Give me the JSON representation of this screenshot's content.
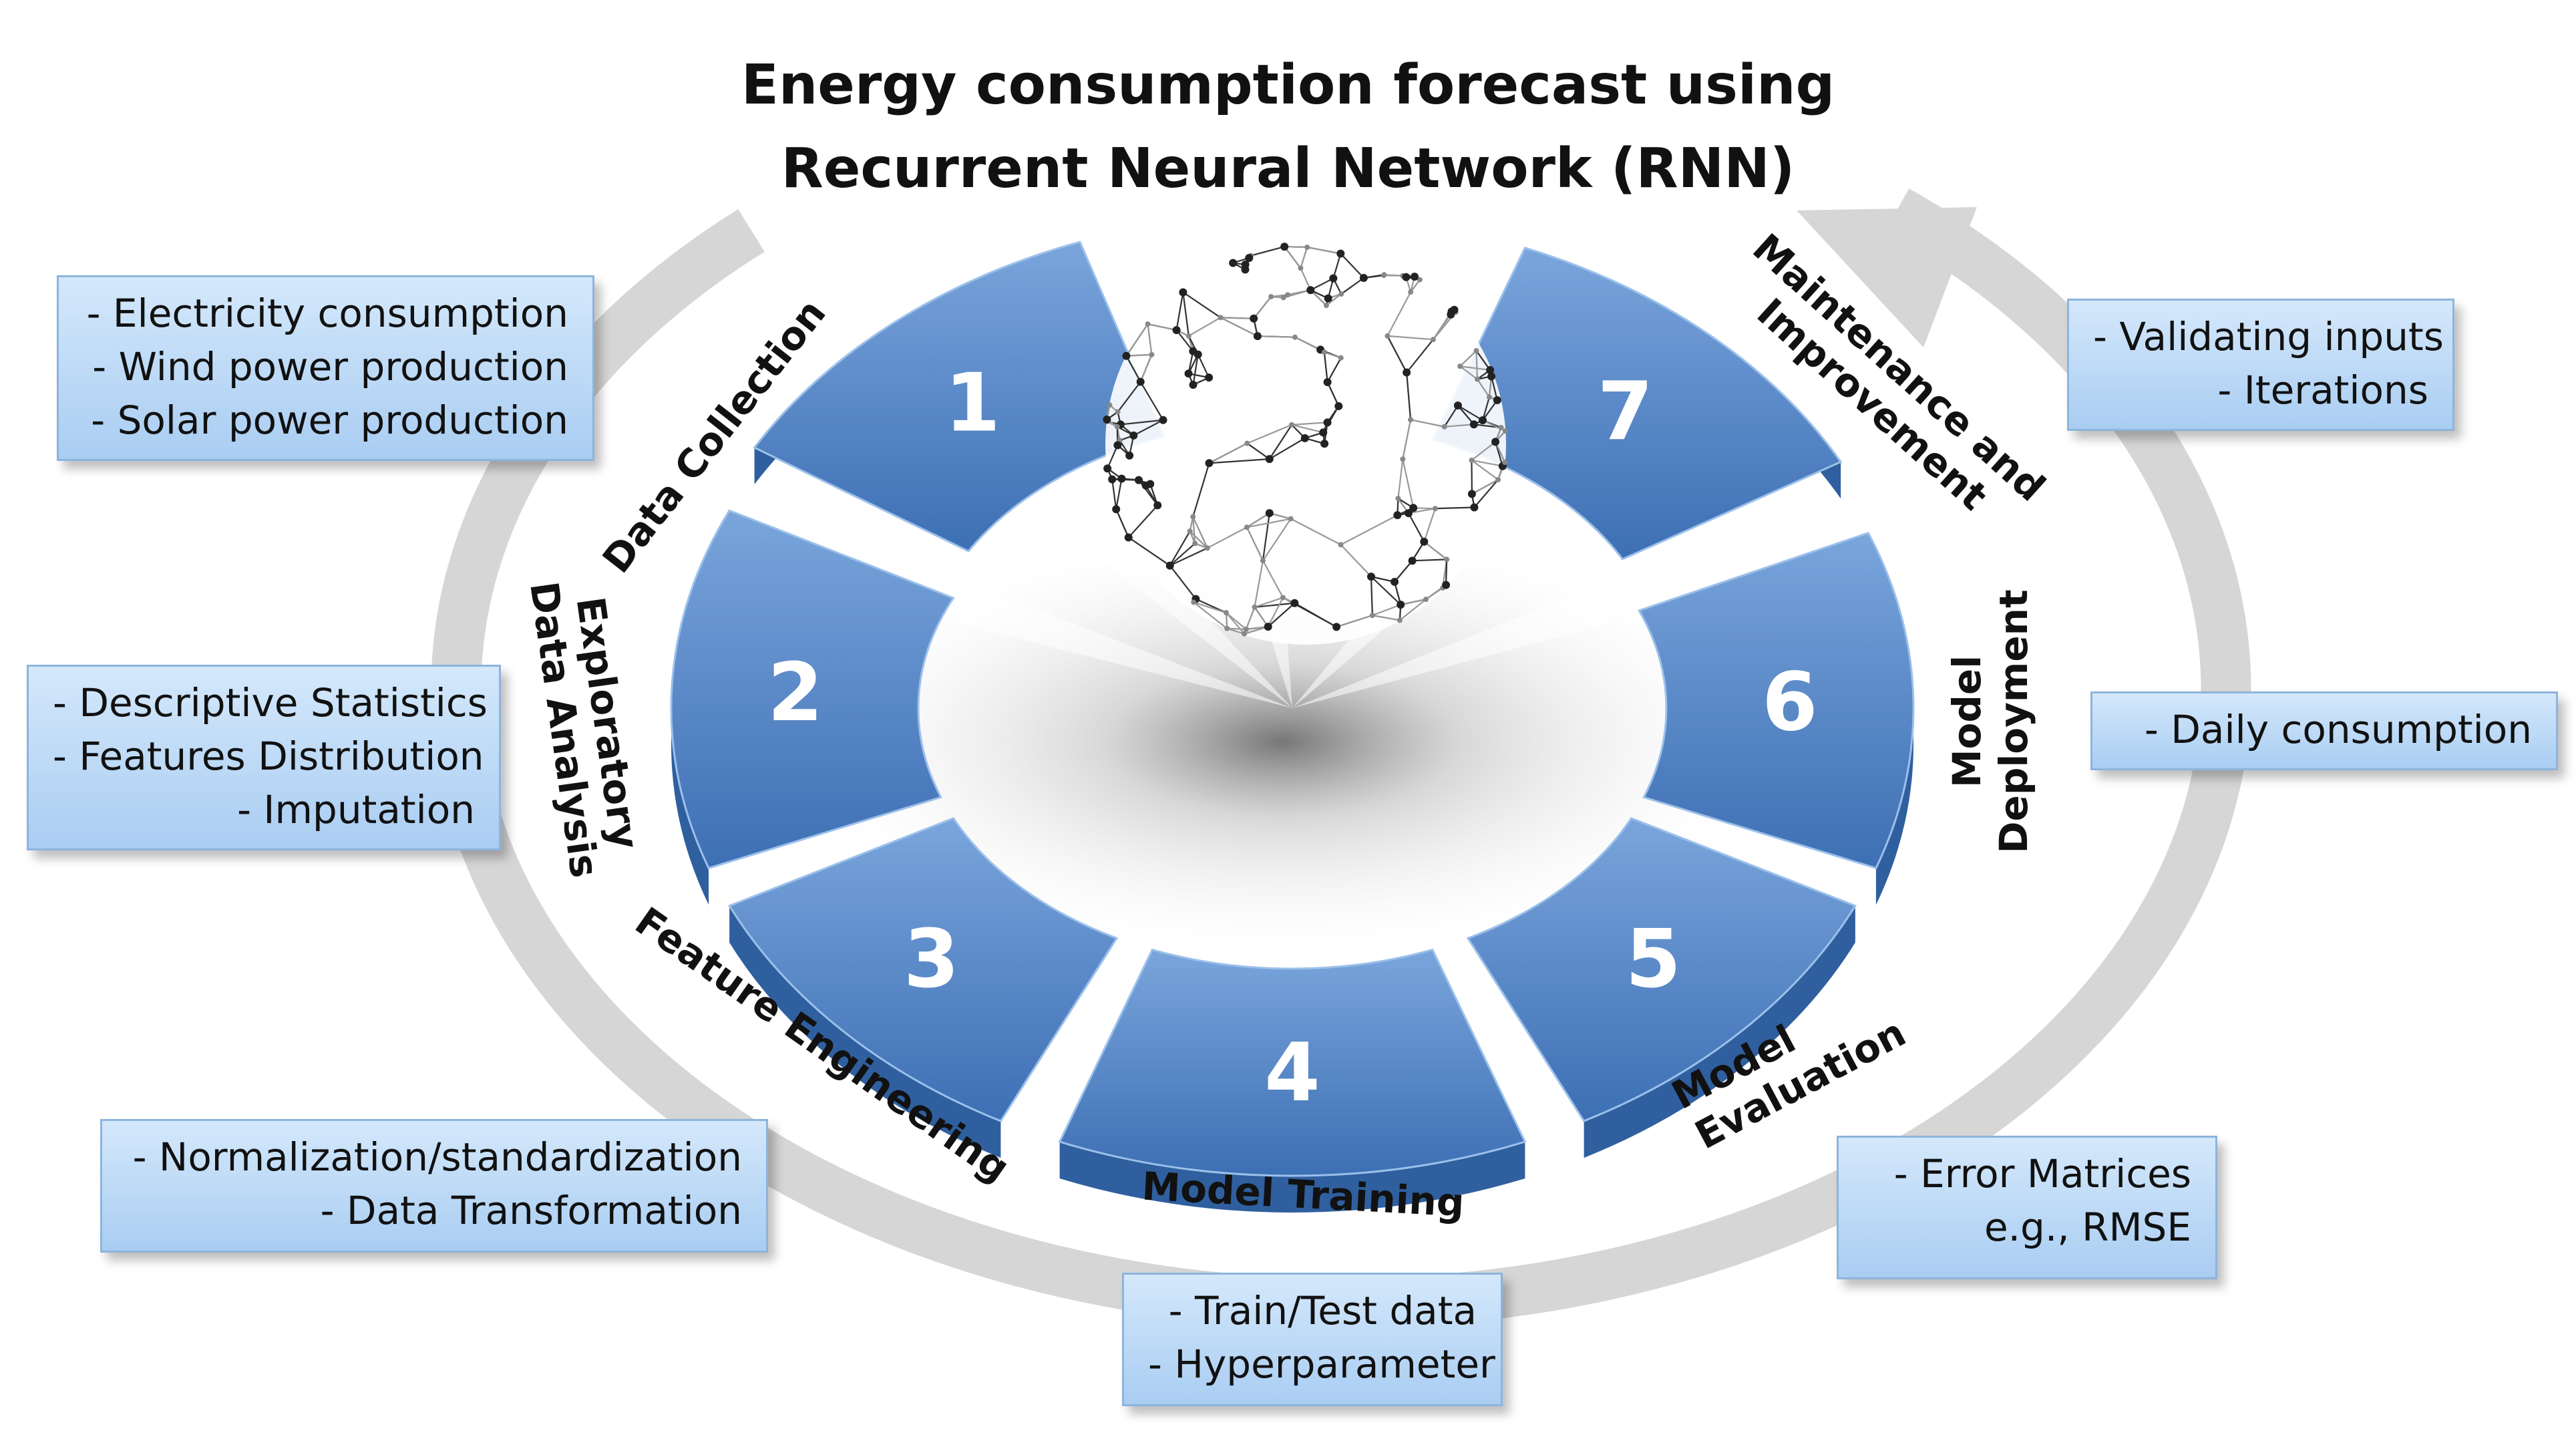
{
  "title": {
    "line1": "Energy consumption forecast using",
    "line2": "Recurrent Neural Network (RNN)"
  },
  "stages": [
    {
      "number": "1",
      "label": "Data Collection"
    },
    {
      "number": "2",
      "label_line1": "Exploratory",
      "label_line2": "Data Analysis"
    },
    {
      "number": "3",
      "label": "Feature Engineering"
    },
    {
      "number": "4",
      "label": "Model Training"
    },
    {
      "number": "5",
      "label_line1": "Model",
      "label_line2": "Evaluation"
    },
    {
      "number": "6",
      "label_line1": "Model",
      "label_line2": "Deployment"
    },
    {
      "number": "7",
      "label_line1": "Maintenance and",
      "label_line2": "Improvement"
    }
  ],
  "notes": {
    "data_collection": [
      "- Electricity consumption",
      "- Wind power production",
      "- Solar power production"
    ],
    "eda": [
      "- Descriptive Statistics",
      "- Features Distribution",
      "- Imputation"
    ],
    "feature_engineering": [
      "- Normalization/standardization",
      "- Data Transformation"
    ],
    "model_training": [
      "- Train/Test data",
      "- Hyperparameter"
    ],
    "model_evaluation": [
      "- Error Matrices",
      "e.g., RMSE"
    ],
    "model_deployment": [
      "- Daily consumption"
    ],
    "maintenance": [
      "- Validating inputs",
      "- Iterations"
    ]
  },
  "colors": {
    "segment_top": "#5b8fd0",
    "segment_side": "#2f5f9e",
    "segment_light": "#8fb6e6",
    "cycle_arrow": "#d6d6d6",
    "note_border": "#8db4dc"
  },
  "icons": [
    "globe-network-icon",
    "cycle-arrow-icon"
  ]
}
